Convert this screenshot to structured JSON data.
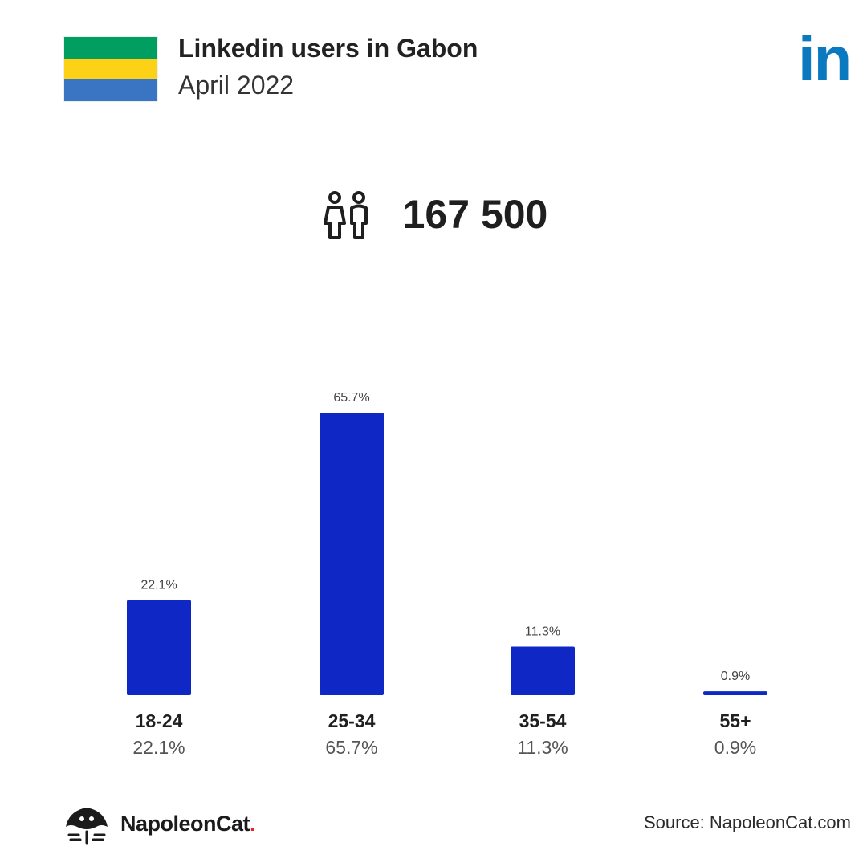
{
  "header": {
    "title": "Linkedin users in Gabon",
    "subtitle": "April 2022",
    "logo_text": "in",
    "flag_colors": [
      "#009E60",
      "#FCD116",
      "#3A75C4"
    ]
  },
  "summary": {
    "total_users": "167 500",
    "icon": "users-icon"
  },
  "colors": {
    "bar": "#0F27C4",
    "linkedin": "#0A79BF",
    "text": "#1f1f1f",
    "muted": "#555555"
  },
  "chart_data": {
    "type": "bar",
    "categories": [
      "18-24",
      "25-34",
      "35-54",
      "55+"
    ],
    "values": [
      22.1,
      65.7,
      11.3,
      0.9
    ],
    "value_labels": [
      "22.1%",
      "65.7%",
      "11.3%",
      "0.9%"
    ],
    "title": "",
    "xlabel": "",
    "ylabel": "",
    "unit": "%",
    "ylim": [
      0,
      65.7
    ],
    "grid": false
  },
  "footer": {
    "brand": "NapoleonCat",
    "brand_dot": ".",
    "source": "Source: NapoleonCat.com"
  }
}
